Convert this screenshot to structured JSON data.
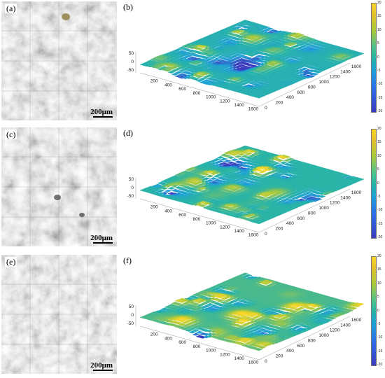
{
  "rows": [
    {
      "left_label": "(a)",
      "right_label": "(b)"
    },
    {
      "left_label": "(c)",
      "right_label": "(d)"
    },
    {
      "left_label": "(e)",
      "right_label": "(f)"
    }
  ],
  "scale_bar": "200μm",
  "z_ticks": [
    "50",
    "0",
    "-50"
  ],
  "x_ticks": [
    "200",
    "400",
    "600",
    "800",
    "1000",
    "1200",
    "1400",
    "1600"
  ],
  "y_ticks": [
    "0",
    "200",
    "400",
    "600",
    "800",
    "1000",
    "1200",
    "1400",
    "1600"
  ],
  "colorbar_ticks": [
    "20",
    "15",
    "10",
    "5",
    "0",
    "-5",
    "-10",
    "-15",
    "-20"
  ],
  "colors": {
    "high": "#f9d626",
    "mid_high": "#a9c93b",
    "mid": "#27b3a6",
    "mid_low": "#1e9fd9",
    "low": "#3a3bbf"
  }
}
